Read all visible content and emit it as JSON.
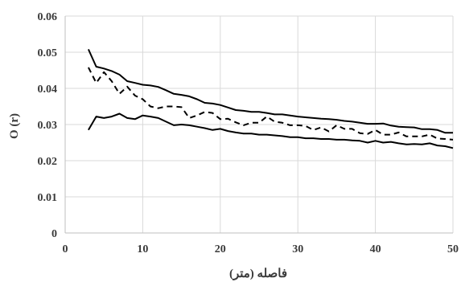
{
  "chart_data": {
    "type": "line",
    "xlabel": "فاصله (متر)",
    "ylabel": "O (r)",
    "xlim": [
      0,
      50
    ],
    "ylim": [
      0,
      0.06
    ],
    "xticks": [
      "0",
      "10",
      "20",
      "30",
      "40",
      "50"
    ],
    "yticks": [
      "0",
      "0.01",
      "0.02",
      "0.03",
      "0.04",
      "0.05",
      "0.06"
    ],
    "grid": true,
    "series": [
      {
        "style": "solid",
        "x": [
          3,
          4,
          5,
          6,
          7,
          8,
          9,
          10,
          11,
          12,
          13,
          14,
          15,
          16,
          17,
          18,
          19,
          20,
          21,
          22,
          23,
          24,
          25,
          26,
          27,
          28,
          29,
          30,
          31,
          32,
          33,
          34,
          35,
          36,
          37,
          38,
          39,
          40,
          41,
          42,
          43,
          44,
          45,
          46,
          47,
          48,
          49,
          50
        ],
        "values": [
          0.0508,
          0.046,
          0.0455,
          0.0448,
          0.0438,
          0.042,
          0.0415,
          0.041,
          0.0408,
          0.0404,
          0.0395,
          0.0385,
          0.0382,
          0.0378,
          0.037,
          0.036,
          0.0358,
          0.0354,
          0.0347,
          0.034,
          0.0338,
          0.0335,
          0.0335,
          0.0332,
          0.0328,
          0.0328,
          0.0325,
          0.0322,
          0.032,
          0.0318,
          0.0316,
          0.0315,
          0.0313,
          0.031,
          0.0308,
          0.0305,
          0.0302,
          0.0302,
          0.0303,
          0.0297,
          0.0294,
          0.0293,
          0.0292,
          0.0287,
          0.0287,
          0.0285,
          0.0277,
          0.0277
        ]
      },
      {
        "style": "dashed",
        "x": [
          3,
          4,
          5,
          6,
          7,
          8,
          9,
          10,
          11,
          12,
          13,
          14,
          15,
          16,
          17,
          18,
          19,
          20,
          21,
          22,
          23,
          24,
          25,
          26,
          27,
          28,
          29,
          30,
          31,
          32,
          33,
          34,
          35,
          36,
          37,
          38,
          39,
          40,
          41,
          42,
          43,
          44,
          45,
          46,
          47,
          48,
          49,
          50
        ],
        "values": [
          0.0458,
          0.0415,
          0.0445,
          0.042,
          0.0385,
          0.0405,
          0.038,
          0.037,
          0.035,
          0.0345,
          0.035,
          0.035,
          0.0348,
          0.0318,
          0.0325,
          0.0335,
          0.0332,
          0.0315,
          0.0316,
          0.0306,
          0.0298,
          0.0305,
          0.0305,
          0.0322,
          0.0308,
          0.0305,
          0.0298,
          0.0298,
          0.0296,
          0.0285,
          0.0292,
          0.0281,
          0.0298,
          0.0288,
          0.0288,
          0.0276,
          0.0274,
          0.0285,
          0.0272,
          0.0272,
          0.0278,
          0.0267,
          0.0267,
          0.0267,
          0.0272,
          0.0261,
          0.026,
          0.0258
        ]
      },
      {
        "style": "solid",
        "x": [
          3,
          4,
          5,
          6,
          7,
          8,
          9,
          10,
          11,
          12,
          13,
          14,
          15,
          16,
          17,
          18,
          19,
          20,
          21,
          22,
          23,
          24,
          25,
          26,
          27,
          28,
          29,
          30,
          31,
          32,
          33,
          34,
          35,
          36,
          37,
          38,
          39,
          40,
          41,
          42,
          43,
          44,
          45,
          46,
          47,
          48,
          49,
          50
        ],
        "values": [
          0.0285,
          0.0322,
          0.0318,
          0.0322,
          0.033,
          0.0318,
          0.0315,
          0.0325,
          0.0322,
          0.0318,
          0.0308,
          0.0298,
          0.03,
          0.0298,
          0.0294,
          0.029,
          0.0285,
          0.0288,
          0.0282,
          0.0278,
          0.0275,
          0.0275,
          0.0272,
          0.0272,
          0.027,
          0.0268,
          0.0265,
          0.0265,
          0.0262,
          0.0262,
          0.026,
          0.026,
          0.0258,
          0.0258,
          0.0256,
          0.0255,
          0.025,
          0.0255,
          0.025,
          0.0252,
          0.0248,
          0.0245,
          0.0246,
          0.0245,
          0.0248,
          0.0242,
          0.024,
          0.0235
        ]
      }
    ]
  }
}
